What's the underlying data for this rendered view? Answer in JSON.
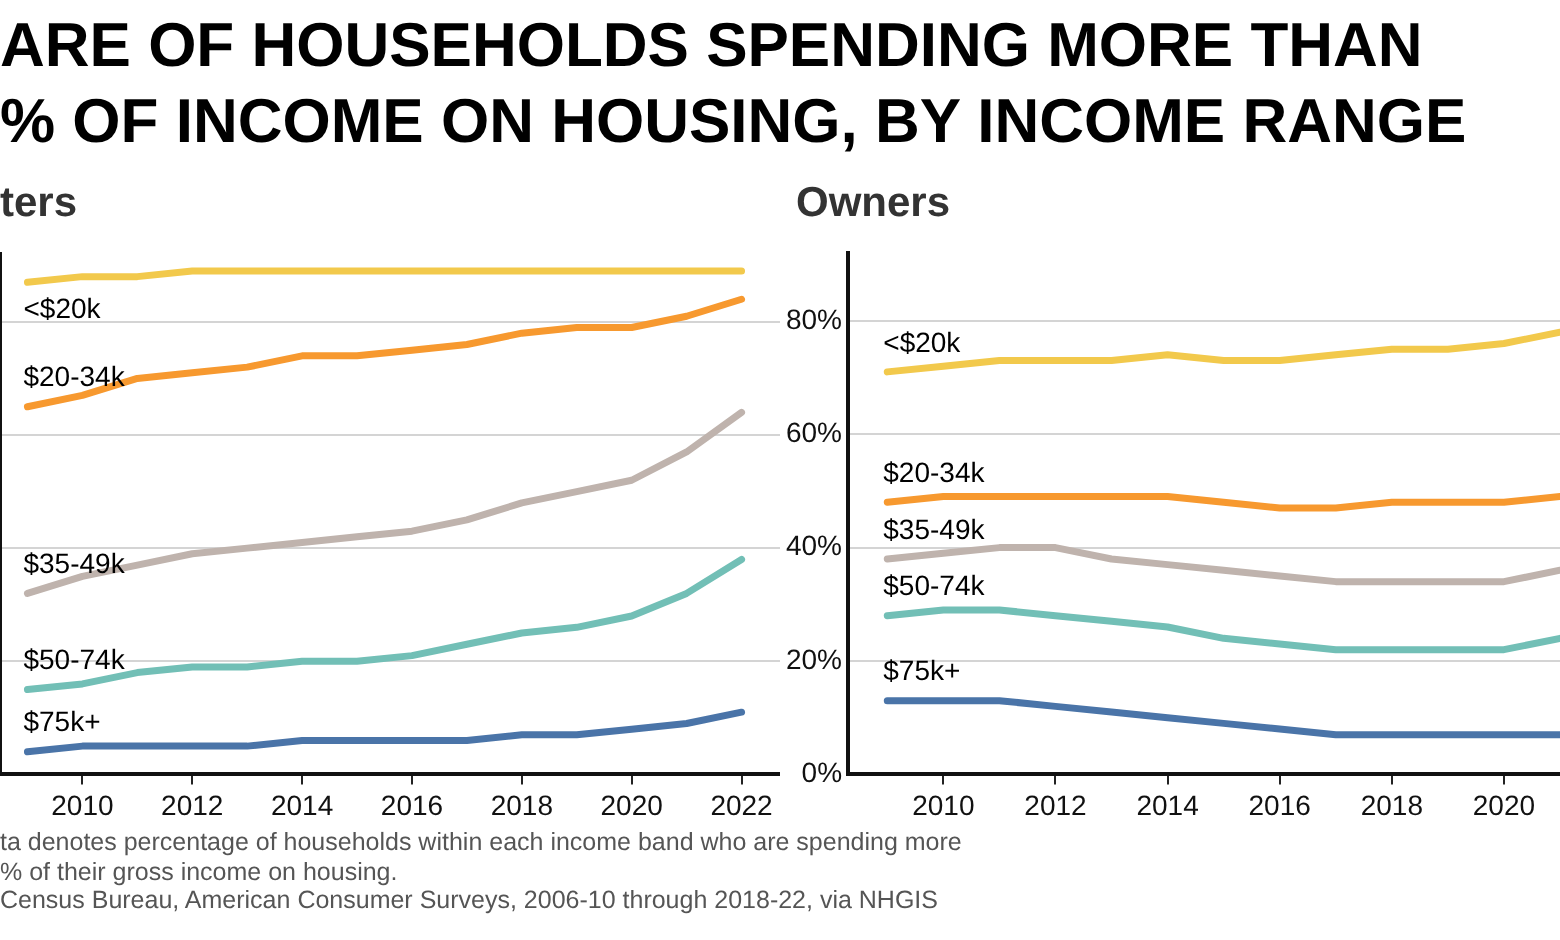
{
  "chart_data": [
    {
      "type": "line",
      "title": "ARE OF HOUSEHOLDS SPENDING MORE THAN\n% OF INCOME ON HOUSING, BY INCOME RANGE",
      "subtitle": "ters",
      "x": [
        2009,
        2010,
        2011,
        2012,
        2013,
        2014,
        2015,
        2016,
        2017,
        2018,
        2019,
        2020,
        2021,
        2022
      ],
      "series": [
        {
          "name": "<$20k",
          "color": "#f2c94c",
          "values": [
            87,
            88,
            88,
            89,
            89,
            89,
            89,
            89,
            89,
            89,
            89,
            89,
            89,
            89
          ]
        },
        {
          "name": "$20-34k",
          "color": "#f7992f",
          "values": [
            65,
            67,
            70,
            71,
            72,
            74,
            74,
            75,
            76,
            78,
            79,
            79,
            81,
            84
          ]
        },
        {
          "name": "$35-49k",
          "color": "#bfb3ad",
          "values": [
            32,
            35,
            37,
            39,
            40,
            41,
            42,
            43,
            45,
            48,
            50,
            52,
            57,
            64
          ]
        },
        {
          "name": "$50-74k",
          "color": "#72bfb6",
          "values": [
            15,
            16,
            18,
            19,
            19,
            20,
            20,
            21,
            23,
            25,
            26,
            28,
            32,
            38
          ]
        },
        {
          "name": "$75k+",
          "color": "#4a74a8",
          "values": [
            4,
            5,
            5,
            5,
            5,
            6,
            6,
            6,
            6,
            7,
            7,
            8,
            9,
            11
          ]
        }
      ],
      "xlim": [
        2008.5,
        2022.7
      ],
      "xticks": [
        2010,
        2012,
        2014,
        2016,
        2018,
        2020,
        2022
      ],
      "ylim": [
        0,
        92
      ],
      "yticks": [
        {
          "value": 0,
          "label": null
        },
        {
          "value": 20,
          "label": null
        },
        {
          "value": 40,
          "label": null
        },
        {
          "value": 60,
          "label": null
        },
        {
          "value": 80,
          "label": null
        }
      ],
      "grid": "y",
      "tick_labels": "x",
      "annotations": [
        "ta denotes percentage of households within each income band who are spending more",
        "% of their gross income on housing.",
        "Census Bureau, American Consumer Surveys, 2006-10 through 2018-22, via NHGIS"
      ]
    },
    {
      "type": "line",
      "subtitle": "Owners",
      "x": [
        2009,
        2010,
        2011,
        2012,
        2013,
        2014,
        2015,
        2016,
        2017,
        2018,
        2019,
        2020,
        2021
      ],
      "series": [
        {
          "name": "<$20k",
          "color": "#f2c94c",
          "values": [
            71,
            72,
            73,
            73,
            73,
            74,
            73,
            73,
            74,
            75,
            75,
            76,
            78
          ]
        },
        {
          "name": "$20-34k",
          "color": "#f7992f",
          "values": [
            48,
            49,
            49,
            49,
            49,
            49,
            48,
            47,
            47,
            48,
            48,
            48,
            49
          ]
        },
        {
          "name": "$35-49k",
          "color": "#bfb3ad",
          "values": [
            38,
            39,
            40,
            40,
            38,
            37,
            36,
            35,
            34,
            34,
            34,
            34,
            36
          ]
        },
        {
          "name": "$50-74k",
          "color": "#72bfb6",
          "values": [
            28,
            29,
            29,
            28,
            27,
            26,
            24,
            23,
            22,
            22,
            22,
            22,
            24
          ]
        },
        {
          "name": "$75k+",
          "color": "#4a74a8",
          "values": [
            13,
            13,
            13,
            12,
            11,
            10,
            9,
            8,
            7,
            7,
            7,
            7,
            7
          ]
        }
      ],
      "xlim": [
        2008.3,
        2021
      ],
      "xticks": [
        2010,
        2012,
        2014,
        2016,
        2018,
        2020
      ],
      "ylim": [
        0,
        92
      ],
      "yticks": [
        {
          "value": 0,
          "label": "0%"
        },
        {
          "value": 20,
          "label": "20%"
        },
        {
          "value": 40,
          "label": "40%"
        },
        {
          "value": 60,
          "label": "60%"
        },
        {
          "value": 80,
          "label": "80%"
        }
      ],
      "grid": "y"
    }
  ]
}
